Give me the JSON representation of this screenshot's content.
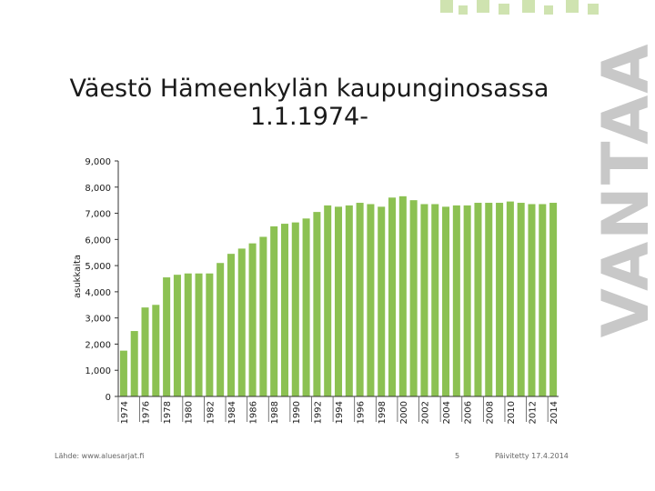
{
  "slide": {
    "title_line1": "Väestö Hämeenkylän kaupunginosassa",
    "title_line2": "1.1.1974-",
    "brand": "VANTAA",
    "footer_source": "Lähde: www.aluesarjat.fi",
    "footer_page": "5",
    "footer_updated": "Päivitetty 17.4.2014"
  },
  "colors": {
    "bar": "#8cc152",
    "brand_text": "#c8c8c8",
    "logo_squares": "#cfe3b0",
    "axis": "#333333"
  },
  "chart_data": {
    "type": "bar",
    "title": "Väestö Hämeenkylän kaupunginosassa 1.1.1974-",
    "ylabel": "asukkaita",
    "xlabel": "",
    "ylim": [
      0,
      9000
    ],
    "ytick_labels": [
      "0",
      "1,000",
      "2,000",
      "3,000",
      "4,000",
      "5,000",
      "6,000",
      "7,000",
      "8,000",
      "9,000"
    ],
    "categories": [
      "1974",
      "1975",
      "1976",
      "1977",
      "1978",
      "1979",
      "1980",
      "1981",
      "1982",
      "1983",
      "1984",
      "1985",
      "1986",
      "1987",
      "1988",
      "1989",
      "1990",
      "1991",
      "1992",
      "1993",
      "1994",
      "1995",
      "1996",
      "1997",
      "1998",
      "1999",
      "2000",
      "2001",
      "2002",
      "2003",
      "2004",
      "2005",
      "2006",
      "2007",
      "2008",
      "2009",
      "2010",
      "2011",
      "2012",
      "2013",
      "2014"
    ],
    "xtick_labels": [
      "1974",
      "",
      "1976",
      "",
      "1978",
      "",
      "1980",
      "",
      "1982",
      "",
      "1984",
      "",
      "1986",
      "",
      "1988",
      "",
      "1990",
      "",
      "1992",
      "",
      "1994",
      "",
      "1996",
      "",
      "1998",
      "",
      "2000",
      "",
      "2002",
      "",
      "2004",
      "",
      "2006",
      "",
      "2008",
      "",
      "2010",
      "",
      "2012",
      "",
      "2014"
    ],
    "values": [
      1750,
      2500,
      3400,
      3500,
      4550,
      4650,
      4700,
      4700,
      4700,
      5100,
      5450,
      5650,
      5850,
      6100,
      6500,
      6600,
      6650,
      6800,
      7050,
      7300,
      7250,
      7300,
      7400,
      7350,
      7250,
      7600,
      7650,
      7500,
      7350,
      7350,
      7250,
      7300,
      7300,
      7400,
      7400,
      7400,
      7450,
      7400,
      7350,
      7350,
      7400
    ],
    "grid": false
  }
}
